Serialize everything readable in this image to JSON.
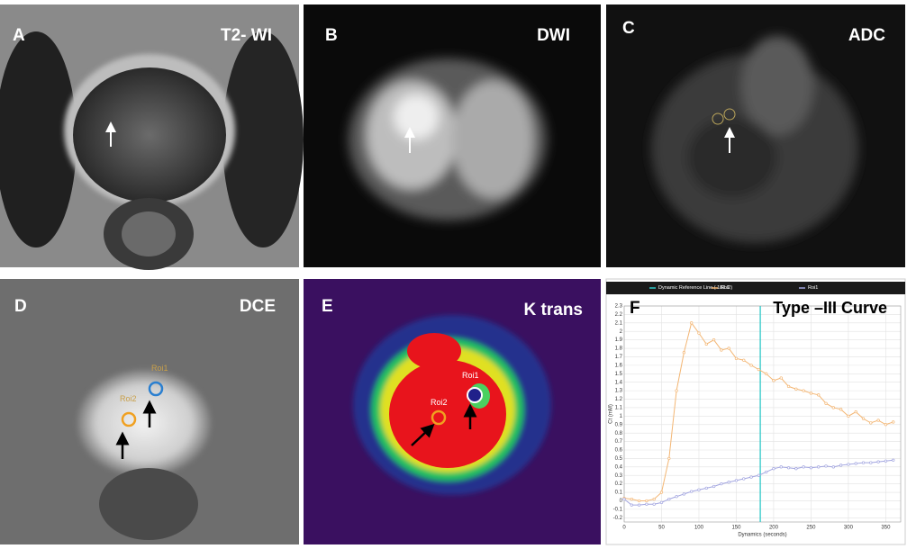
{
  "panels": [
    {
      "label": "A",
      "title": "T2- WI"
    },
    {
      "label": "B",
      "title": "DWI"
    },
    {
      "label": "C",
      "title": "ADC"
    },
    {
      "label": "D",
      "title": "DCE",
      "rois": [
        "Roi1",
        "Roi2"
      ]
    },
    {
      "label": "E",
      "title": "K trans",
      "rois": [
        "Roi1",
        "Roi2"
      ]
    },
    {
      "label": "F",
      "title": "Type –III Curve"
    }
  ],
  "chart_data": {
    "type": "line",
    "x_label": "Dynamics (seconds)",
    "y_label": "Ct (mM)",
    "x": [
      0,
      10,
      20,
      30,
      40,
      50,
      60,
      70,
      80,
      90,
      100,
      110,
      120,
      130,
      140,
      150,
      160,
      170,
      180,
      190,
      200,
      210,
      220,
      230,
      240,
      250,
      260,
      270,
      280,
      290,
      300,
      310,
      320,
      330,
      340,
      350,
      360
    ],
    "series": [
      {
        "name": "Roi2",
        "color": "#f3b674",
        "values": [
          0.03,
          0.02,
          0.0,
          0.0,
          0.02,
          0.1,
          0.5,
          1.3,
          1.75,
          2.1,
          1.98,
          1.85,
          1.9,
          1.78,
          1.8,
          1.68,
          1.66,
          1.6,
          1.55,
          1.5,
          1.42,
          1.45,
          1.35,
          1.32,
          1.3,
          1.27,
          1.25,
          1.15,
          1.1,
          1.08,
          1.0,
          1.05,
          0.97,
          0.92,
          0.95,
          0.9,
          0.93
        ]
      },
      {
        "name": "Roi1",
        "color": "#a3a6e0",
        "values": [
          0.02,
          -0.05,
          -0.05,
          -0.04,
          -0.04,
          -0.02,
          0.02,
          0.05,
          0.08,
          0.11,
          0.13,
          0.15,
          0.17,
          0.2,
          0.22,
          0.24,
          0.26,
          0.28,
          0.3,
          0.34,
          0.38,
          0.4,
          0.39,
          0.38,
          0.4,
          0.39,
          0.4,
          0.41,
          0.4,
          0.42,
          0.43,
          0.44,
          0.45,
          0.45,
          0.46,
          0.47,
          0.48
        ]
      }
    ],
    "reference_line": {
      "x": 182.1,
      "label": "Dynamic Reference Line ( 182.1 )",
      "color": "#2ec8c8"
    },
    "xlim": [
      0,
      370
    ],
    "ylim": [
      -0.25,
      2.3
    ],
    "xticks": [
      0,
      50,
      100,
      150,
      200,
      250,
      300,
      350
    ],
    "yticks": [
      -0.2,
      -0.1,
      0,
      0.1,
      0.2,
      0.3,
      0.4,
      0.5,
      0.6,
      0.7,
      0.8,
      0.9,
      1,
      1.1,
      1.2,
      1.3,
      1.4,
      1.5,
      1.6,
      1.7,
      1.8,
      1.9,
      2,
      2.1,
      2.2,
      2.3
    ],
    "grid": true
  }
}
